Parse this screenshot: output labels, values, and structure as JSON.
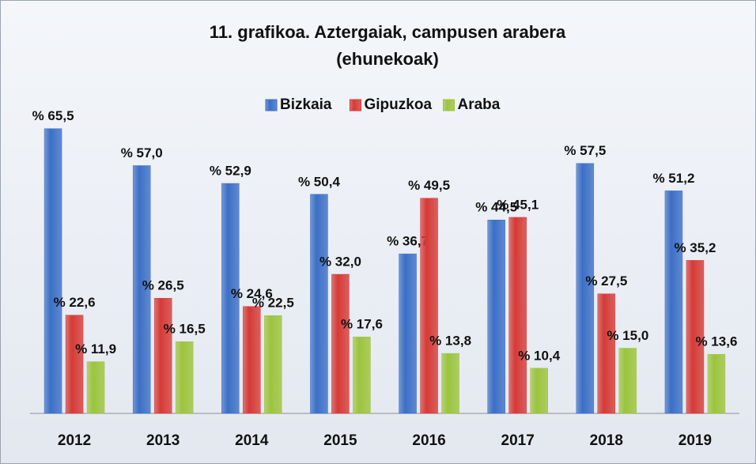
{
  "chart_data": {
    "type": "bar",
    "title": "11. grafikoa. Aztergaiak, campusen arabera",
    "subtitle": "(ehunekoak)",
    "categories": [
      "2012",
      "2013",
      "2014",
      "2015",
      "2016",
      "2017",
      "2018",
      "2019"
    ],
    "series": [
      {
        "name": "Bizkaia",
        "color": "#3b6fc6",
        "values": [
          65.5,
          57.0,
          52.9,
          50.4,
          36.7,
          44.5,
          57.5,
          51.2
        ],
        "value_labels": [
          "% 65,5",
          "% 57,0",
          "% 52,9",
          "% 50,4",
          "% 36,7",
          "% 44,5",
          "% 57,5",
          "% 51,2"
        ]
      },
      {
        "name": "Gipuzkoa",
        "color": "#d63a36",
        "values": [
          22.6,
          26.5,
          24.6,
          32.0,
          49.5,
          45.1,
          27.5,
          35.2
        ],
        "value_labels": [
          "% 22,6",
          "% 26,5",
          "% 24,6",
          "% 32,0",
          "% 49,5",
          "% 45,1",
          "% 27,5",
          "% 35,2"
        ]
      },
      {
        "name": "Araba",
        "color": "#9cc43c",
        "values": [
          11.9,
          16.5,
          22.5,
          17.6,
          13.8,
          10.4,
          15.0,
          13.6
        ],
        "value_labels": [
          "% 11,9",
          "% 16,5",
          "% 22,5",
          "% 17,6",
          "% 13,8",
          "% 10,4",
          "% 15,0",
          "% 13,6"
        ]
      }
    ],
    "legend": "top"
  }
}
